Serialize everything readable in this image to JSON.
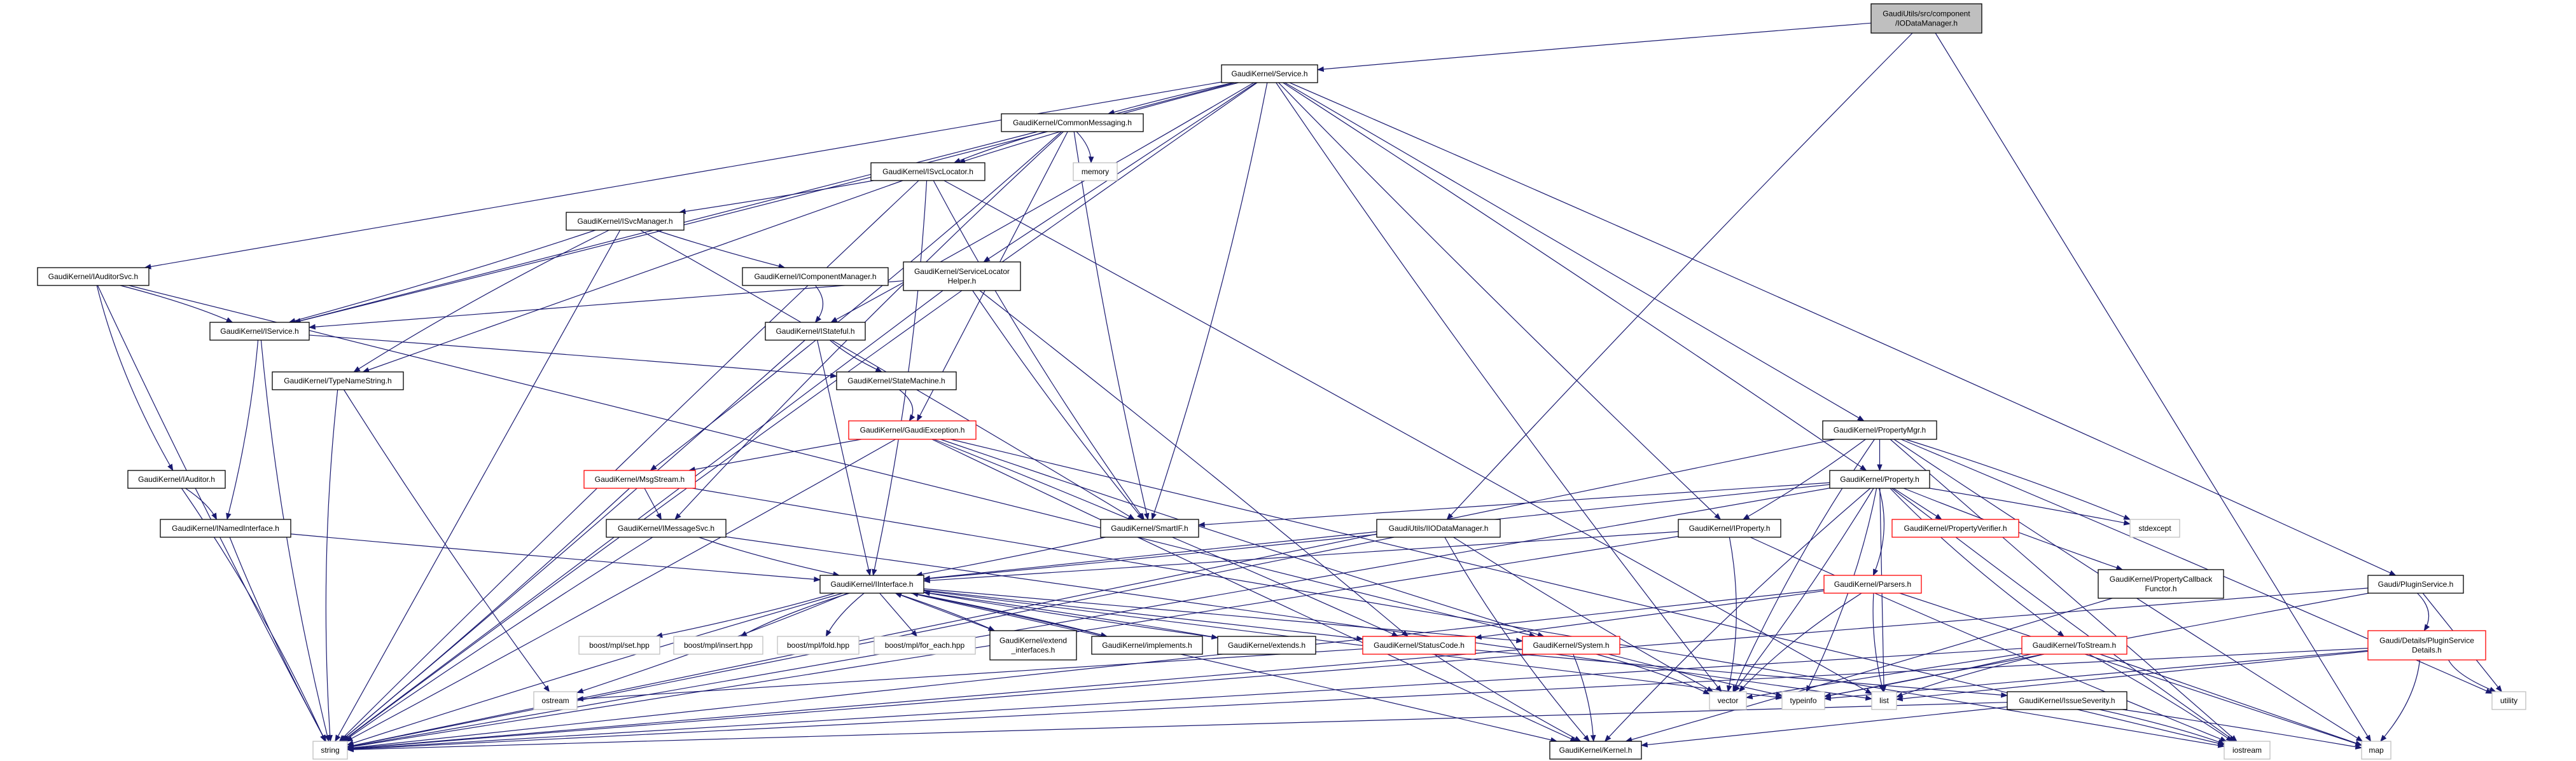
{
  "colors": {
    "edge": "#191970",
    "normal_border": "#000000",
    "incomplete_border": "#ff0000",
    "external_border": "#bfbfbf",
    "root_fill": "#bfbfbf"
  },
  "nodes": [
    {
      "id": "root",
      "lines": [
        "GaudiUtils/src/component",
        "/IODataManager.h"
      ],
      "style": "root"
    },
    {
      "id": "service",
      "lines": [
        "GaudiKernel/Service.h"
      ],
      "style": "normal"
    },
    {
      "id": "commonmessaging",
      "lines": [
        "GaudiKernel/CommonMessaging.h"
      ],
      "style": "normal"
    },
    {
      "id": "isvclocator",
      "lines": [
        "GaudiKernel/ISvcLocator.h"
      ],
      "style": "normal"
    },
    {
      "id": "memory",
      "lines": [
        "memory"
      ],
      "style": "external"
    },
    {
      "id": "isvcmanager",
      "lines": [
        "GaudiKernel/ISvcManager.h"
      ],
      "style": "normal"
    },
    {
      "id": "iauditorsvc",
      "lines": [
        "GaudiKernel/IAuditorSvc.h"
      ],
      "style": "normal"
    },
    {
      "id": "icomponentmanager",
      "lines": [
        "GaudiKernel/IComponentManager.h"
      ],
      "style": "normal"
    },
    {
      "id": "servicelocatorhelper",
      "lines": [
        "GaudiKernel/ServiceLocator",
        "Helper.h"
      ],
      "style": "normal"
    },
    {
      "id": "iservice",
      "lines": [
        "GaudiKernel/IService.h"
      ],
      "style": "normal"
    },
    {
      "id": "istateful",
      "lines": [
        "GaudiKernel/IStateful.h"
      ],
      "style": "normal"
    },
    {
      "id": "typenamestring",
      "lines": [
        "GaudiKernel/TypeNameString.h"
      ],
      "style": "normal"
    },
    {
      "id": "statemachine",
      "lines": [
        "GaudiKernel/StateMachine.h"
      ],
      "style": "normal"
    },
    {
      "id": "gaudiexception",
      "lines": [
        "GaudiKernel/GaudiException.h"
      ],
      "style": "red"
    },
    {
      "id": "propertymgr",
      "lines": [
        "GaudiKernel/PropertyMgr.h"
      ],
      "style": "normal"
    },
    {
      "id": "msgstream",
      "lines": [
        "GaudiKernel/MsgStream.h"
      ],
      "style": "red"
    },
    {
      "id": "iauditor",
      "lines": [
        "GaudiKernel/IAuditor.h"
      ],
      "style": "normal"
    },
    {
      "id": "property",
      "lines": [
        "GaudiKernel/Property.h"
      ],
      "style": "normal"
    },
    {
      "id": "inamedinterface",
      "lines": [
        "GaudiKernel/INamedInterface.h"
      ],
      "style": "normal"
    },
    {
      "id": "imessagesvc",
      "lines": [
        "GaudiKernel/IMessageSvc.h"
      ],
      "style": "normal"
    },
    {
      "id": "smartif",
      "lines": [
        "GaudiKernel/SmartIF.h"
      ],
      "style": "normal"
    },
    {
      "id": "iiodatamanager",
      "lines": [
        "GaudiUtils/IIODataManager.h"
      ],
      "style": "normal"
    },
    {
      "id": "iproperty",
      "lines": [
        "GaudiKernel/IProperty.h"
      ],
      "style": "normal"
    },
    {
      "id": "propertyverifier",
      "lines": [
        "GaudiKernel/PropertyVerifier.h"
      ],
      "style": "red"
    },
    {
      "id": "stdexcept",
      "lines": [
        "stdexcept"
      ],
      "style": "external"
    },
    {
      "id": "iinterface",
      "lines": [
        "GaudiKernel/IInterface.h"
      ],
      "style": "normal"
    },
    {
      "id": "parsers",
      "lines": [
        "GaudiKernel/Parsers.h"
      ],
      "style": "red"
    },
    {
      "id": "propertycallbackfunctor",
      "lines": [
        "GaudiKernel/PropertyCallback",
        "Functor.h"
      ],
      "style": "normal"
    },
    {
      "id": "pluginservice",
      "lines": [
        "Gaudi/PluginService.h"
      ],
      "style": "normal"
    },
    {
      "id": "mplset",
      "lines": [
        "boost/mpl/set.hpp"
      ],
      "style": "external"
    },
    {
      "id": "mplinsert",
      "lines": [
        "boost/mpl/insert.hpp"
      ],
      "style": "external"
    },
    {
      "id": "mplfold",
      "lines": [
        "boost/mpl/fold.hpp"
      ],
      "style": "external"
    },
    {
      "id": "mplforeach",
      "lines": [
        "boost/mpl/for_each.hpp"
      ],
      "style": "external"
    },
    {
      "id": "extendinterfaces",
      "lines": [
        "GaudiKernel/extend",
        "_interfaces.h"
      ],
      "style": "normal"
    },
    {
      "id": "implements",
      "lines": [
        "GaudiKernel/implements.h"
      ],
      "style": "normal"
    },
    {
      "id": "extends",
      "lines": [
        "GaudiKernel/extends.h"
      ],
      "style": "normal"
    },
    {
      "id": "statuscode",
      "lines": [
        "GaudiKernel/StatusCode.h"
      ],
      "style": "red"
    },
    {
      "id": "system",
      "lines": [
        "GaudiKernel/System.h"
      ],
      "style": "red"
    },
    {
      "id": "tostream",
      "lines": [
        "GaudiKernel/ToStream.h"
      ],
      "style": "red"
    },
    {
      "id": "pluginservicedetails",
      "lines": [
        "Gaudi/Details/PluginService",
        "Details.h"
      ],
      "style": "red"
    },
    {
      "id": "ostream",
      "lines": [
        "ostream"
      ],
      "style": "external"
    },
    {
      "id": "vector",
      "lines": [
        "vector"
      ],
      "style": "external"
    },
    {
      "id": "typeinfo",
      "lines": [
        "typeinfo"
      ],
      "style": "external"
    },
    {
      "id": "list",
      "lines": [
        "list"
      ],
      "style": "external"
    },
    {
      "id": "issueseverity",
      "lines": [
        "GaudiKernel/IssueSeverity.h"
      ],
      "style": "normal"
    },
    {
      "id": "utility",
      "lines": [
        "utility"
      ],
      "style": "external"
    },
    {
      "id": "string",
      "lines": [
        "string"
      ],
      "style": "external"
    },
    {
      "id": "kernel",
      "lines": [
        "GaudiKernel/Kernel.h"
      ],
      "style": "normal"
    },
    {
      "id": "iostream",
      "lines": [
        "iostream"
      ],
      "style": "external"
    },
    {
      "id": "map",
      "lines": [
        "map"
      ],
      "style": "external"
    }
  ],
  "edges": [
    [
      "root",
      "service"
    ],
    [
      "root",
      "iiodatamanager"
    ],
    [
      "root",
      "map"
    ],
    [
      "service",
      "iauditorsvc"
    ],
    [
      "service",
      "iservice"
    ],
    [
      "service",
      "isvclocator"
    ],
    [
      "service",
      "commonmessaging"
    ],
    [
      "service",
      "servicelocatorhelper"
    ],
    [
      "service",
      "istateful"
    ],
    [
      "service",
      "smartif"
    ],
    [
      "service",
      "vector"
    ],
    [
      "service",
      "iproperty"
    ],
    [
      "service",
      "propertymgr"
    ],
    [
      "service",
      "property"
    ],
    [
      "service",
      "pluginservice"
    ],
    [
      "service",
      "string"
    ],
    [
      "commonmessaging",
      "isvclocator"
    ],
    [
      "commonmessaging",
      "iservice"
    ],
    [
      "commonmessaging",
      "memory"
    ],
    [
      "commonmessaging",
      "msgstream"
    ],
    [
      "commonmessaging",
      "imessagesvc"
    ],
    [
      "commonmessaging",
      "smartif"
    ],
    [
      "commonmessaging",
      "gaudiexception"
    ],
    [
      "isvclocator",
      "isvcmanager"
    ],
    [
      "isvclocator",
      "iinterface"
    ],
    [
      "isvclocator",
      "smartif"
    ],
    [
      "isvclocator",
      "string"
    ],
    [
      "isvclocator",
      "typenamestring"
    ],
    [
      "isvclocator",
      "list"
    ],
    [
      "isvcmanager",
      "iservice"
    ],
    [
      "isvcmanager",
      "typenamestring"
    ],
    [
      "isvcmanager",
      "icomponentmanager"
    ],
    [
      "isvcmanager",
      "string"
    ],
    [
      "isvcmanager",
      "smartif"
    ],
    [
      "icomponentmanager",
      "istateful"
    ],
    [
      "servicelocatorhelper",
      "iservice"
    ],
    [
      "servicelocatorhelper",
      "smartif"
    ],
    [
      "servicelocatorhelper",
      "string"
    ],
    [
      "servicelocatorhelper",
      "statuscode"
    ],
    [
      "iauditorsvc",
      "iservice"
    ],
    [
      "iauditorsvc",
      "iauditor"
    ],
    [
      "iauditorsvc",
      "string"
    ],
    [
      "iauditorsvc",
      "system"
    ],
    [
      "iservice",
      "inamedinterface"
    ],
    [
      "iservice",
      "statemachine"
    ],
    [
      "iservice",
      "string"
    ],
    [
      "istateful",
      "statemachine"
    ],
    [
      "istateful",
      "iinterface"
    ],
    [
      "istateful",
      "string"
    ],
    [
      "statemachine",
      "gaudiexception"
    ],
    [
      "typenamestring",
      "string"
    ],
    [
      "typenamestring",
      "ostream"
    ],
    [
      "gaudiexception",
      "msgstream"
    ],
    [
      "gaudiexception",
      "string"
    ],
    [
      "gaudiexception",
      "statuscode"
    ],
    [
      "gaudiexception",
      "system"
    ],
    [
      "gaudiexception",
      "kernel"
    ],
    [
      "gaudiexception",
      "iostream"
    ],
    [
      "iauditor",
      "inamedinterface"
    ],
    [
      "iauditor",
      "string"
    ],
    [
      "inamedinterface",
      "iinterface"
    ],
    [
      "inamedinterface",
      "string"
    ],
    [
      "msgstream",
      "imessagesvc"
    ],
    [
      "msgstream",
      "string"
    ],
    [
      "msgstream",
      "iostream"
    ],
    [
      "imessagesvc",
      "iinterface"
    ],
    [
      "imessagesvc",
      "string"
    ],
    [
      "imessagesvc",
      "list"
    ],
    [
      "smartif",
      "iinterface"
    ],
    [
      "iiodatamanager",
      "iinterface"
    ],
    [
      "iiodatamanager",
      "kernel"
    ],
    [
      "iiodatamanager",
      "vector"
    ],
    [
      "iiodatamanager",
      "string"
    ],
    [
      "iproperty",
      "iinterface"
    ],
    [
      "iproperty",
      "vector"
    ],
    [
      "iproperty",
      "iostream"
    ],
    [
      "iproperty",
      "string"
    ],
    [
      "propertymgr",
      "property"
    ],
    [
      "propertymgr",
      "iproperty"
    ],
    [
      "propertymgr",
      "stdexcept"
    ],
    [
      "propertymgr",
      "vector"
    ],
    [
      "propertymgr",
      "map"
    ],
    [
      "propertymgr",
      "iostream"
    ],
    [
      "propertymgr",
      "utility"
    ],
    [
      "propertymgr",
      "string"
    ],
    [
      "property",
      "smartif"
    ],
    [
      "property",
      "iinterface"
    ],
    [
      "property",
      "propertyverifier"
    ],
    [
      "property",
      "stdexcept"
    ],
    [
      "property",
      "parsers"
    ],
    [
      "property",
      "tostream"
    ],
    [
      "property",
      "propertycallbackfunctor"
    ],
    [
      "property",
      "string"
    ],
    [
      "property",
      "vector"
    ],
    [
      "property",
      "typeinfo"
    ],
    [
      "property",
      "kernel"
    ],
    [
      "property",
      "iostream"
    ],
    [
      "property",
      "list"
    ],
    [
      "parsers",
      "statuscode"
    ],
    [
      "parsers",
      "string"
    ],
    [
      "parsers",
      "vector"
    ],
    [
      "parsers",
      "list"
    ],
    [
      "parsers",
      "map"
    ],
    [
      "propertycallbackfunctor",
      "kernel"
    ],
    [
      "pluginservice",
      "pluginservicedetails"
    ],
    [
      "pluginservice",
      "string"
    ],
    [
      "pluginservice",
      "typeinfo"
    ],
    [
      "pluginservice",
      "utility"
    ],
    [
      "pluginservicedetails",
      "string"
    ],
    [
      "pluginservicedetails",
      "map"
    ],
    [
      "pluginservicedetails",
      "utility"
    ],
    [
      "pluginservicedetails",
      "list"
    ],
    [
      "pluginservicedetails",
      "typeinfo"
    ],
    [
      "tostream",
      "string"
    ],
    [
      "tostream",
      "typeinfo"
    ],
    [
      "tostream",
      "list"
    ],
    [
      "tostream",
      "vector"
    ],
    [
      "tostream",
      "map"
    ],
    [
      "tostream",
      "iostream"
    ],
    [
      "iinterface",
      "mplset"
    ],
    [
      "iinterface",
      "mplinsert"
    ],
    [
      "iinterface",
      "mplfold"
    ],
    [
      "iinterface",
      "mplforeach"
    ],
    [
      "iinterface",
      "extendinterfaces"
    ],
    [
      "iinterface",
      "implements"
    ],
    [
      "iinterface",
      "extends"
    ],
    [
      "iinterface",
      "statuscode"
    ],
    [
      "iinterface",
      "system"
    ],
    [
      "iinterface",
      "kernel"
    ],
    [
      "iinterface",
      "ostream"
    ],
    [
      "iinterface",
      "string"
    ],
    [
      "iinterface",
      "typeinfo"
    ],
    [
      "extendinterfaces",
      "iinterface"
    ],
    [
      "implements",
      "iinterface"
    ],
    [
      "extends",
      "iinterface"
    ],
    [
      "statuscode",
      "issueseverity"
    ],
    [
      "statuscode",
      "kernel"
    ],
    [
      "statuscode",
      "ostream"
    ],
    [
      "system",
      "kernel"
    ],
    [
      "system",
      "vector"
    ],
    [
      "system",
      "string"
    ],
    [
      "system",
      "typeinfo"
    ],
    [
      "issueseverity",
      "kernel"
    ],
    [
      "issueseverity",
      "map"
    ],
    [
      "issueseverity",
      "iostream"
    ],
    [
      "issueseverity",
      "string"
    ]
  ]
}
